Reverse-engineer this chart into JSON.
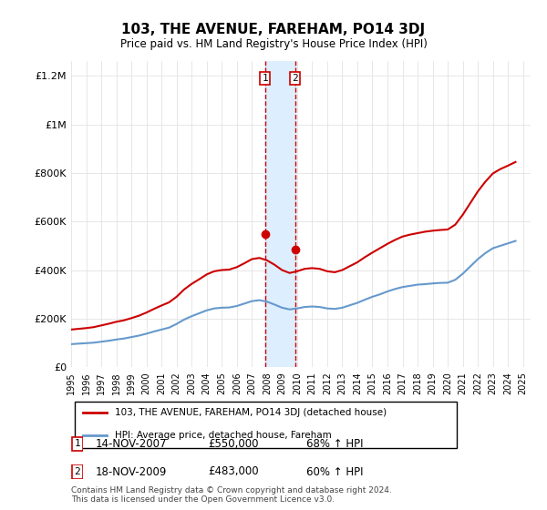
{
  "title": "103, THE AVENUE, FAREHAM, PO14 3DJ",
  "subtitle": "Price paid vs. HM Land Registry's House Price Index (HPI)",
  "legend_line1": "103, THE AVENUE, FAREHAM, PO14 3DJ (detached house)",
  "legend_line2": "HPI: Average price, detached house, Fareham",
  "sale1_label": "1",
  "sale1_date": "14-NOV-2007",
  "sale1_price": "£550,000",
  "sale1_hpi": "68% ↑ HPI",
  "sale1_year": 2007.87,
  "sale1_value": 550000,
  "sale2_label": "2",
  "sale2_date": "18-NOV-2009",
  "sale2_price": "£483,000",
  "sale2_hpi": "60% ↑ HPI",
  "sale2_year": 2009.87,
  "sale2_value": 483000,
  "copyright": "Contains HM Land Registry data © Crown copyright and database right 2024.\nThis data is licensed under the Open Government Licence v3.0.",
  "red_color": "#cc0000",
  "blue_color": "#6699cc",
  "highlight_fill": "#ddeeff",
  "highlight_edge": "#cc0000",
  "ylim": [
    0,
    1260000
  ],
  "xlim_start": 1995.0,
  "xlim_end": 2025.5,
  "hpi_years": [
    1995,
    1995.5,
    1996,
    1996.5,
    1997,
    1997.5,
    1998,
    1998.5,
    1999,
    1999.5,
    2000,
    2000.5,
    2001,
    2001.5,
    2002,
    2002.5,
    2003,
    2003.5,
    2004,
    2004.5,
    2005,
    2005.5,
    2006,
    2006.5,
    2007,
    2007.5,
    2008,
    2008.5,
    2009,
    2009.5,
    2010,
    2010.5,
    2011,
    2011.5,
    2012,
    2012.5,
    2013,
    2013.5,
    2014,
    2014.5,
    2015,
    2015.5,
    2016,
    2016.5,
    2017,
    2017.5,
    2018,
    2018.5,
    2019,
    2019.5,
    2020,
    2020.5,
    2021,
    2021.5,
    2022,
    2022.5,
    2023,
    2023.5,
    2024,
    2024.5
  ],
  "hpi_values": [
    95000,
    97000,
    99000,
    101000,
    105000,
    109000,
    114000,
    118000,
    124000,
    130000,
    138000,
    147000,
    155000,
    163000,
    178000,
    196000,
    210000,
    222000,
    234000,
    242000,
    245000,
    246000,
    252000,
    262000,
    272000,
    276000,
    270000,
    258000,
    245000,
    238000,
    242000,
    248000,
    250000,
    248000,
    242000,
    240000,
    245000,
    255000,
    265000,
    278000,
    290000,
    300000,
    312000,
    322000,
    330000,
    335000,
    340000,
    342000,
    345000,
    347000,
    348000,
    360000,
    385000,
    415000,
    445000,
    470000,
    490000,
    500000,
    510000,
    520000
  ],
  "prop_years": [
    1995,
    1995.5,
    1996,
    1996.5,
    1997,
    1997.5,
    1998,
    1998.5,
    1999,
    1999.5,
    2000,
    2000.5,
    2001,
    2001.5,
    2002,
    2002.5,
    2003,
    2003.5,
    2004,
    2004.5,
    2005,
    2005.5,
    2006,
    2006.5,
    2007,
    2007.5,
    2008,
    2008.5,
    2009,
    2009.5,
    2010,
    2010.5,
    2011,
    2011.5,
    2012,
    2012.5,
    2013,
    2013.5,
    2014,
    2014.5,
    2015,
    2015.5,
    2016,
    2016.5,
    2017,
    2017.5,
    2018,
    2018.5,
    2019,
    2019.5,
    2020,
    2020.5,
    2021,
    2021.5,
    2022,
    2022.5,
    2023,
    2023.5,
    2024,
    2024.5
  ],
  "prop_values": [
    155000,
    158000,
    161000,
    165000,
    172000,
    179000,
    187000,
    193000,
    202000,
    212000,
    225000,
    240000,
    254000,
    267000,
    290000,
    320000,
    343000,
    362000,
    382000,
    395000,
    400000,
    402000,
    412000,
    428000,
    445000,
    450000,
    440000,
    422000,
    400000,
    388000,
    395000,
    405000,
    408000,
    405000,
    395000,
    391000,
    400000,
    416000,
    432000,
    453000,
    472000,
    490000,
    508000,
    524000,
    538000,
    546000,
    552000,
    558000,
    562000,
    565000,
    567000,
    587000,
    628000,
    676000,
    724000,
    764000,
    798000,
    816000,
    830000,
    845000
  ]
}
